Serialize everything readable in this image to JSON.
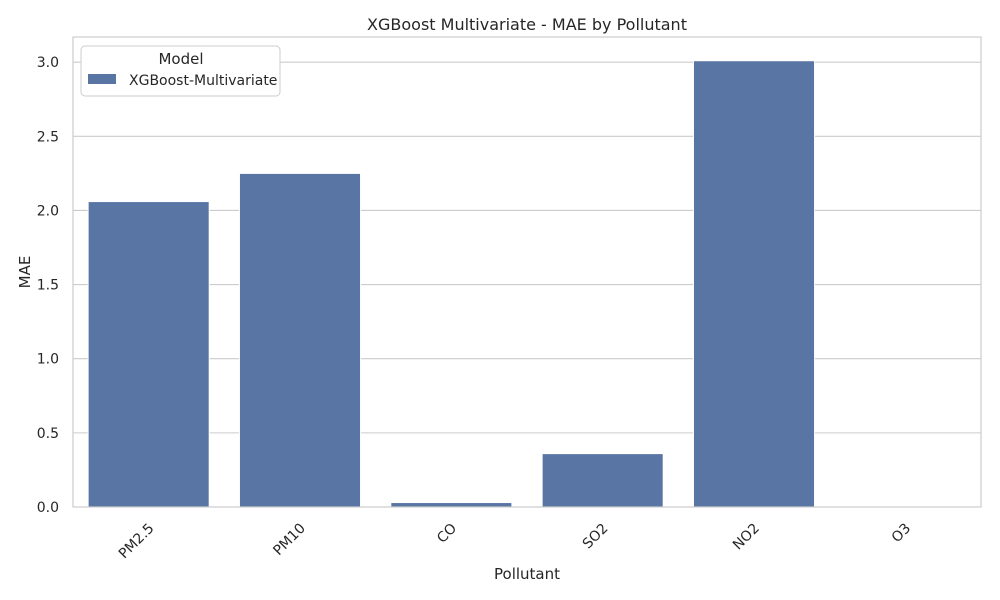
{
  "chart_data": {
    "type": "bar",
    "title": "XGBoost Multivariate - MAE by Pollutant",
    "xlabel": "Pollutant",
    "ylabel": "MAE",
    "categories": [
      "PM2.5",
      "PM10",
      "CO",
      "SO2",
      "NO2",
      "O3"
    ],
    "series": [
      {
        "name": "XGBoost-Multivariate",
        "values": [
          2.06,
          2.25,
          0.03,
          0.36,
          3.01,
          0.0
        ],
        "color": "#5975a4"
      }
    ],
    "ylim": [
      0,
      3.17
    ],
    "yticks": [
      "0.0",
      "0.5",
      "1.0",
      "1.5",
      "2.0",
      "2.5",
      "3.0"
    ],
    "grid": true,
    "legend": {
      "title": "Model",
      "placement": "top-left"
    }
  }
}
